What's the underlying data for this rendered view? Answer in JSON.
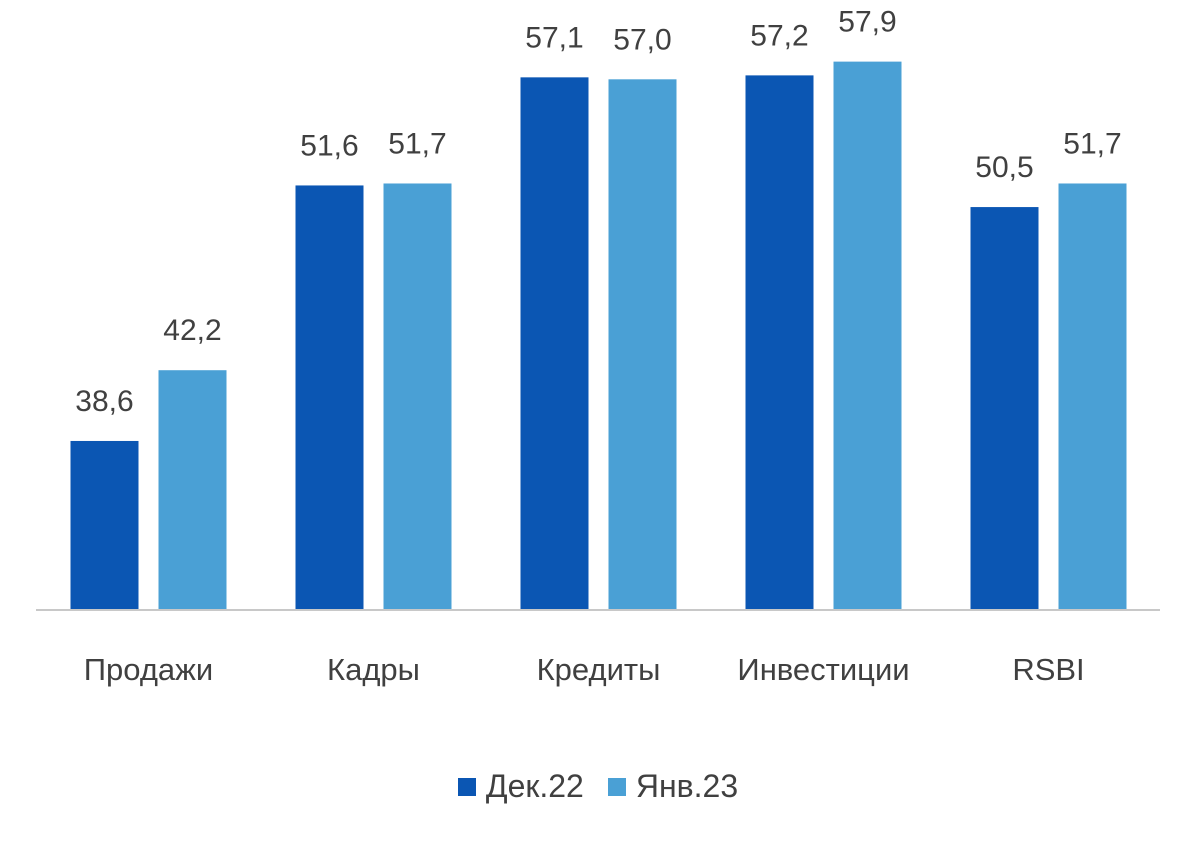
{
  "chart_data": {
    "type": "bar",
    "categories": [
      "Продажи",
      "Кадры",
      "Кредиты",
      "Инвестиции",
      "RSBI"
    ],
    "series": [
      {
        "name": "Дек.22",
        "color": "#0b56b3",
        "values": [
          38.6,
          51.6,
          57.1,
          57.2,
          50.5
        ],
        "labels": [
          "38,6",
          "51,6",
          "57,1",
          "57,2",
          "50,5"
        ]
      },
      {
        "name": "Янв.23",
        "color": "#4aa0d5",
        "values": [
          42.2,
          51.7,
          57.0,
          57.9,
          51.7
        ],
        "labels": [
          "42,2",
          "51,7",
          "57,0",
          "57,9",
          "51,7"
        ]
      }
    ],
    "title": "",
    "xlabel": "",
    "ylabel": "",
    "ylim": [
      30,
      59
    ],
    "grid": false,
    "legend_position": "bottom",
    "axis_color": "#c8c8c8",
    "text_color": "#404040"
  }
}
